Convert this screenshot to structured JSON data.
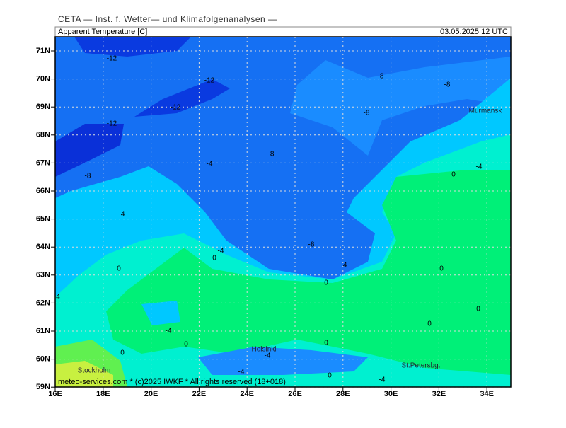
{
  "header": {
    "institute": "CETA — Inst. f. Wetter— und Klimafolgenanalysen —",
    "title": "Apparent Temperature [C]",
    "timestamp": "03.05.2025 12 UTC",
    "footer": "meteo-services.com * (c)2025 IWKF * All rights reserved (18+018)"
  },
  "map": {
    "lat_labels": [
      "71N",
      "70N",
      "69N",
      "68N",
      "67N",
      "66N",
      "65N",
      "64N",
      "63N",
      "62N",
      "61N",
      "60N",
      "59N"
    ],
    "lon_labels": [
      "16E",
      "18E",
      "20E",
      "22E",
      "24E",
      "26E",
      "28E",
      "30E",
      "32E",
      "34E"
    ],
    "contour_labels": [
      "-12",
      "-12",
      "-12",
      "-12",
      "-8",
      "-8",
      "-8",
      "-8",
      "-8",
      "-4",
      "-4",
      "0",
      "-4",
      "-8",
      "-4",
      "0",
      "-4",
      "0",
      "0",
      "0",
      "0",
      "0",
      "-4",
      "0",
      "0",
      "0",
      "-4",
      "-4",
      "0",
      "-4",
      "4"
    ],
    "cities": [
      "Murmansk",
      "Helsinki",
      "Stockholm",
      "St.Petersbg."
    ]
  }
}
